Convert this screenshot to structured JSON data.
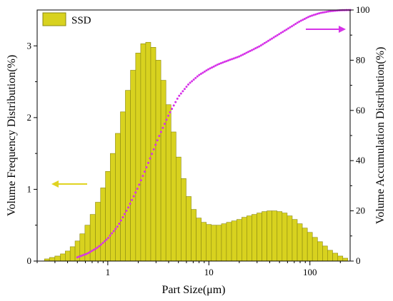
{
  "chart_data": {
    "type": "bar",
    "title": "",
    "xlabel": "Part Size(μm)",
    "ylabel_left": "Volume Frequency Distribution(%)",
    "ylabel_right": "Volume Accumulation Distribution(%)",
    "x_scale": "log",
    "xlim": [
      0.2,
      250
    ],
    "ylim_left": [
      0,
      3.5
    ],
    "ylim_right": [
      0,
      100
    ],
    "x_ticks": [
      1,
      10,
      100
    ],
    "x_tick_labels": [
      "1",
      "10",
      "100"
    ],
    "y_left_ticks": [
      0,
      1,
      2,
      3
    ],
    "y_left_tick_labels": [
      "0",
      "1",
      "2",
      "3"
    ],
    "y_right_ticks": [
      0,
      20,
      40,
      60,
      80,
      100
    ],
    "y_right_tick_labels": [
      "0",
      "20",
      "40",
      "60",
      "80",
      "100"
    ],
    "legend": {
      "position": "top-left",
      "entries": [
        "SSD"
      ]
    },
    "series": [
      {
        "name": "SSD",
        "kind": "bar",
        "axis": "left",
        "x": [
          0.25,
          0.28,
          0.32,
          0.36,
          0.4,
          0.45,
          0.5,
          0.56,
          0.63,
          0.71,
          0.8,
          0.9,
          1.0,
          1.12,
          1.26,
          1.41,
          1.58,
          1.78,
          2.0,
          2.24,
          2.51,
          2.82,
          3.16,
          3.55,
          3.98,
          4.47,
          5.01,
          5.62,
          6.31,
          7.08,
          7.94,
          8.91,
          10.0,
          11.2,
          12.6,
          14.1,
          15.8,
          17.8,
          20.0,
          22.4,
          25.1,
          28.2,
          31.6,
          35.5,
          39.8,
          44.7,
          50.1,
          56.2,
          63.1,
          70.8,
          79.4,
          89.1,
          100,
          112,
          126,
          141,
          158,
          178,
          200,
          224
        ],
        "values": [
          0.03,
          0.05,
          0.07,
          0.1,
          0.14,
          0.2,
          0.28,
          0.38,
          0.5,
          0.65,
          0.82,
          1.02,
          1.25,
          1.5,
          1.78,
          2.08,
          2.38,
          2.66,
          2.9,
          3.03,
          3.05,
          2.98,
          2.8,
          2.52,
          2.18,
          1.8,
          1.45,
          1.15,
          0.9,
          0.72,
          0.6,
          0.54,
          0.51,
          0.5,
          0.5,
          0.52,
          0.54,
          0.56,
          0.58,
          0.61,
          0.63,
          0.65,
          0.67,
          0.69,
          0.7,
          0.7,
          0.69,
          0.67,
          0.63,
          0.58,
          0.52,
          0.46,
          0.4,
          0.33,
          0.27,
          0.21,
          0.15,
          0.11,
          0.07,
          0.04
        ]
      },
      {
        "name": "",
        "kind": "dotted-line",
        "axis": "right",
        "x": [
          0.25,
          0.32,
          0.4,
          0.5,
          0.63,
          0.8,
          1.0,
          1.26,
          1.58,
          2.0,
          2.51,
          3.16,
          3.98,
          5.01,
          6.31,
          7.94,
          10.0,
          12.6,
          15.8,
          20.0,
          25.1,
          31.6,
          39.8,
          50.1,
          63.1,
          79.4,
          100,
          126,
          158,
          200,
          250
        ],
        "values": [
          0.1,
          0.3,
          0.7,
          1.5,
          3.0,
          5.5,
          9.0,
          14.0,
          21.0,
          29.5,
          39.0,
          49.0,
          58.0,
          65.5,
          70.5,
          74.0,
          76.5,
          78.5,
          80.0,
          81.5,
          83.5,
          85.5,
          88.0,
          90.5,
          93.0,
          95.5,
          97.5,
          98.8,
          99.5,
          99.9,
          100
        ]
      }
    ],
    "annotations": [
      {
        "type": "arrow",
        "direction": "left",
        "color": "#e0d321",
        "points_to_axis": "left"
      },
      {
        "type": "arrow",
        "direction": "right",
        "color": "#d633e8",
        "points_to_axis": "right"
      }
    ],
    "colors": {
      "bar_fill": "#d8d21f",
      "bar_edge": "#8a8812",
      "cumulative": "#d633e8",
      "left_arrow": "#e0d321",
      "right_arrow": "#d633e8"
    }
  }
}
